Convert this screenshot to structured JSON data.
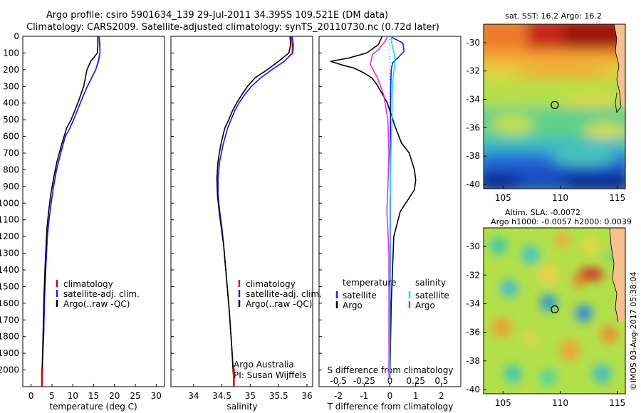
{
  "header": {
    "title_line1": "Argo profile: csiro 5901634_139 29-Jul-2011 34.395S 109.521E (DM data)",
    "title_line2": "Climatology: CARS2009. Satellite-adjusted climatology: synTS_20110730.nc (0.72d later)"
  },
  "colors": {
    "climatology": "#e00000",
    "satellite": "#1a1aff",
    "argo": "#000000",
    "t_diff_satellite": "#1a1aff",
    "s_diff_satellite": "#00e5ff",
    "s_diff_argo": "#e62ee6"
  },
  "chart_data": [
    {
      "id": "temperature",
      "type": "line",
      "xlabel": "temperature (deg C)",
      "ylabel": "",
      "xlim": [
        -2,
        32
      ],
      "ylim": [
        2100,
        0
      ],
      "xticks": [
        "0",
        "5",
        "10",
        "15",
        "20",
        "25",
        "30"
      ],
      "xtick_values": [
        0,
        5,
        10,
        15,
        20,
        25,
        30
      ],
      "yticks": [
        "0",
        "100",
        "200",
        "300",
        "400",
        "500",
        "600",
        "700",
        "800",
        "900",
        "1000",
        "1100",
        "1200",
        "1300",
        "1400",
        "1500",
        "1600",
        "1700",
        "1800",
        "1900",
        "2000"
      ],
      "legend": [
        "climatology",
        "satellite-adj. clim.",
        "Argo(..raw -QC)"
      ],
      "series": [
        {
          "name": "climatology",
          "color": "#e00000",
          "x": [
            16.3,
            16.4,
            16.5,
            16.2,
            15.5,
            14.5,
            13.5,
            12.6,
            11.8,
            11.0,
            10.2,
            9.3,
            8.2,
            7.1,
            6.1,
            5.4,
            4.8,
            4.3,
            3.9,
            3.5,
            3.2,
            3.0,
            2.8,
            2.7,
            2.6
          ],
          "y": [
            0,
            50,
            100,
            150,
            200,
            250,
            300,
            350,
            400,
            450,
            500,
            550,
            600,
            700,
            800,
            900,
            1000,
            1100,
            1200,
            1400,
            1600,
            1800,
            1900,
            2000,
            2050
          ]
        },
        {
          "name": "satellite-adj. clim.",
          "color": "#1a1aff",
          "x": [
            16.3,
            16.5,
            16.5,
            16.1,
            15.5,
            14.5,
            13.5,
            12.6,
            11.8,
            11.0,
            10.2,
            9.3,
            8.2,
            7.1,
            6.1,
            5.4,
            4.8,
            4.3,
            3.9,
            3.5,
            3.2,
            3.0,
            2.8,
            2.7,
            2.6
          ],
          "y": [
            0,
            50,
            100,
            150,
            200,
            250,
            300,
            350,
            400,
            450,
            500,
            550,
            600,
            700,
            800,
            900,
            1000,
            1100,
            1200,
            1400,
            1600,
            1800,
            1900,
            2000,
            2050
          ]
        },
        {
          "name": "Argo(..raw -QC)",
          "color": "#000000",
          "x": [
            16.0,
            16.0,
            15.9,
            14.3,
            13.4,
            12.6,
            11.9,
            11.2,
            10.4,
            9.6,
            8.5,
            7.3,
            6.2,
            5.4,
            4.7,
            4.2,
            3.8,
            3.4,
            3.1,
            2.9,
            2.7,
            2.6
          ],
          "y": [
            0,
            50,
            100,
            150,
            200,
            300,
            350,
            400,
            450,
            500,
            550,
            650,
            750,
            850,
            950,
            1050,
            1150,
            1350,
            1550,
            1750,
            1950,
            2030
          ]
        }
      ]
    },
    {
      "id": "salinity",
      "type": "line",
      "xlabel": "salinity",
      "ylabel": "",
      "xlim": [
        33.6,
        36.1
      ],
      "ylim": [
        2100,
        0
      ],
      "xticks": [
        "34",
        "34.5",
        "35",
        "35.5",
        "36"
      ],
      "xtick_values": [
        34,
        34.5,
        35,
        35.5,
        36
      ],
      "legend": [
        "climatology",
        "satellite-adj. clim.",
        "Argo(..raw -QC)"
      ],
      "annotation": [
        "Argo Australia",
        "PI: Susan Wijffels"
      ],
      "series": [
        {
          "name": "climatology",
          "color": "#e00000",
          "x": [
            35.72,
            35.74,
            35.74,
            35.6,
            35.38,
            35.18,
            35.02,
            34.9,
            34.8,
            34.72,
            34.66,
            34.6,
            34.52,
            34.46,
            34.43,
            34.43,
            34.46,
            34.5,
            34.53,
            34.58,
            34.63,
            34.67,
            34.69,
            34.7,
            34.71
          ],
          "y": [
            0,
            50,
            100,
            150,
            200,
            250,
            300,
            350,
            400,
            450,
            500,
            550,
            650,
            750,
            850,
            950,
            1050,
            1150,
            1250,
            1450,
            1650,
            1850,
            1950,
            2000,
            2050
          ]
        },
        {
          "name": "satellite-adj. clim.",
          "color": "#1a1aff",
          "x": [
            35.74,
            35.76,
            35.75,
            35.6,
            35.38,
            35.18,
            35.02,
            34.9,
            34.8,
            34.72,
            34.66,
            34.6,
            34.52,
            34.46,
            34.43,
            34.43,
            34.46,
            34.5,
            34.53,
            34.58,
            34.63,
            34.67,
            34.69,
            34.7,
            34.71
          ],
          "y": [
            0,
            50,
            100,
            150,
            200,
            250,
            300,
            350,
            400,
            450,
            500,
            550,
            650,
            750,
            850,
            950,
            1050,
            1150,
            1250,
            1450,
            1650,
            1850,
            1950,
            2000,
            2050
          ]
        },
        {
          "name": "Argo(..raw -QC)",
          "color": "#000000",
          "x": [
            35.7,
            35.71,
            35.68,
            35.5,
            35.3,
            35.08,
            34.95,
            34.85,
            34.76,
            34.68,
            34.62,
            34.55,
            34.48,
            34.43,
            34.41,
            34.42,
            34.45,
            34.49,
            34.53,
            34.58,
            34.63,
            34.67,
            34.7
          ],
          "y": [
            0,
            50,
            100,
            150,
            200,
            250,
            300,
            350,
            400,
            450,
            500,
            550,
            650,
            750,
            850,
            950,
            1050,
            1150,
            1250,
            1450,
            1650,
            1850,
            2030
          ]
        }
      ]
    },
    {
      "id": "difference",
      "type": "line",
      "xlabel": "T difference from climatology",
      "xlabel_top": "S difference from climatology",
      "ylim": [
        2100,
        0
      ],
      "xlim": [
        -2.75,
        2.75
      ],
      "xticks": [
        "-2",
        "-1",
        "0",
        "1",
        "2"
      ],
      "xtick_values": [
        -2,
        -1,
        0,
        1,
        2
      ],
      "xticks_top": [
        "-0.5",
        "-0.25",
        "0",
        "0.25",
        "0.5"
      ],
      "xtick_top_values": [
        -0.5,
        -0.25,
        0,
        0.25,
        0.5
      ],
      "legend_temperature": {
        "title": "temperature",
        "entries": [
          "satellite",
          "Argo"
        ]
      },
      "legend_salinity": {
        "title": "salinity",
        "entries": [
          "satellite",
          "Argo"
        ]
      },
      "series": [
        {
          "name": "temperature satellite",
          "color": "#1a1aff",
          "x": [
            0,
            0.5,
            0.55,
            0.3,
            0.1,
            0.05,
            0.03,
            0.02,
            0.02,
            0.01,
            0.01,
            0
          ],
          "y": [
            0,
            40,
            90,
            130,
            160,
            200,
            300,
            400,
            600,
            900,
            1400,
            2050
          ]
        },
        {
          "name": "temperature Argo",
          "color": "#000000",
          "x": [
            -0.3,
            -0.45,
            -0.9,
            -1.6,
            -2.3,
            -1.9,
            -1.4,
            -1.0,
            -0.7,
            -0.5,
            -0.1,
            0.2,
            0.45,
            0.75,
            0.95,
            1.0,
            0.95,
            0.7,
            0.4,
            0.15,
            0.05,
            0
          ],
          "y": [
            0,
            50,
            100,
            130,
            150,
            170,
            190,
            220,
            250,
            290,
            400,
            540,
            640,
            700,
            800,
            860,
            920,
            980,
            1050,
            1200,
            1600,
            2050
          ]
        },
        {
          "name": "salinity satellite",
          "color": "#00e5ff",
          "x": [
            0.01,
            0.02,
            0.04,
            0.05,
            0.03,
            0.02,
            0.02,
            0.01,
            0.0,
            0.0,
            0.0
          ],
          "y": [
            0,
            50,
            100,
            150,
            250,
            350,
            500,
            700,
            1000,
            1500,
            2050
          ]
        },
        {
          "name": "salinity Argo",
          "color": "#e62ee6",
          "x": [
            -0.02,
            -0.06,
            -0.11,
            -0.17,
            -0.19,
            -0.12,
            -0.06,
            -0.02,
            -0.01,
            -0.02,
            -0.03,
            -0.02,
            -0.01,
            -0.01,
            -0.01
          ],
          "y": [
            0,
            40,
            80,
            110,
            170,
            250,
            350,
            500,
            700,
            900,
            1050,
            1150,
            1300,
            1700,
            2050
          ]
        }
      ]
    },
    {
      "id": "sst-map",
      "type": "heatmap",
      "title": "sat. SST: 16.2  Argo: 16.2",
      "xlim": [
        103.3,
        115.7
      ],
      "ylim": [
        -40.3,
        -28.7
      ],
      "xticks": [
        "105",
        "110",
        "115"
      ],
      "xtick_values": [
        105,
        110,
        115
      ],
      "yticks": [
        "-30",
        "-32",
        "-34",
        "-36",
        "-38",
        "-40"
      ],
      "ytick_values": [
        -30,
        -32,
        -34,
        -36,
        -38,
        -40
      ],
      "float_position": {
        "lon": 109.521,
        "lat": -34.395
      }
    },
    {
      "id": "sla-map",
      "type": "heatmap",
      "title": "Altim. SLA: -0.0072",
      "subtitle": "Argo h1000: -0.0057 h2000: 0.0039",
      "xlim": [
        103.3,
        115.7
      ],
      "ylim": [
        -40.3,
        -28.7
      ],
      "xticks": [
        "105",
        "110",
        "115"
      ],
      "xtick_values": [
        105,
        110,
        115
      ],
      "yticks": [
        "-30",
        "-32",
        "-34",
        "-36",
        "-38",
        "-40"
      ],
      "ytick_values": [
        -30,
        -32,
        -34,
        -36,
        -38,
        -40
      ],
      "float_position": {
        "lon": 109.521,
        "lat": -34.395
      }
    }
  ],
  "footer": {
    "credit": "©IMOS 03-Aug-2017 05:38:04"
  }
}
